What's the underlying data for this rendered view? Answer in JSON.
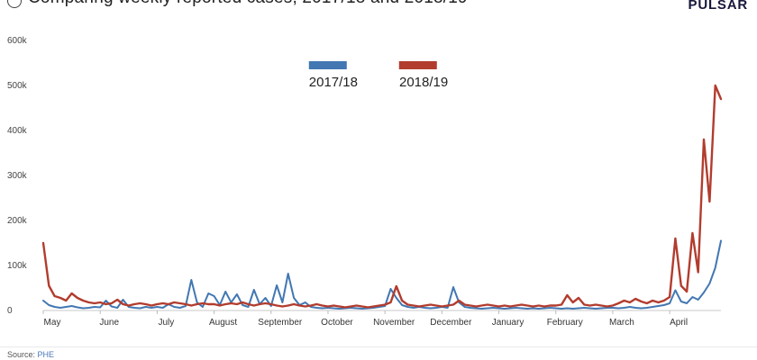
{
  "header": {
    "title": "Comparing weekly reported cases, 2017/18 and 2018/19",
    "logo": "PULSAR"
  },
  "legend": [
    {
      "label": "2017/18",
      "color": "#4277b2"
    },
    {
      "label": "2018/19",
      "color": "#b23c2e"
    }
  ],
  "footer": {
    "source_label": "Source:",
    "source_link": "PHE"
  },
  "chart_data": {
    "type": "line",
    "title": "",
    "xlabel": "",
    "ylabel": "",
    "grid": false,
    "legend_position": "top-center",
    "x_tick_labels": [
      "May",
      "June",
      "July",
      "August",
      "September",
      "October",
      "November",
      "December",
      "January",
      "February",
      "March",
      "April"
    ],
    "y_tick_labels": [
      "0",
      "100k",
      "200k",
      "300k",
      "400k",
      "500k",
      "600k"
    ],
    "ylim": [
      0,
      600000
    ],
    "values_unit": "thousands",
    "y_max_k": 600,
    "points_per_month": 10,
    "series": [
      {
        "name": "2017/18",
        "color": "#4277b2",
        "stroke_width": 2,
        "values": [
          22,
          12,
          8,
          6,
          8,
          10,
          7,
          5,
          6,
          8,
          7,
          22,
          9,
          6,
          24,
          8,
          6,
          5,
          8,
          6,
          8,
          6,
          14,
          8,
          6,
          10,
          68,
          18,
          8,
          38,
          32,
          12,
          42,
          18,
          36,
          12,
          8,
          46,
          14,
          28,
          10,
          56,
          18,
          82,
          28,
          12,
          18,
          8,
          6,
          5,
          6,
          5,
          4,
          5,
          6,
          5,
          4,
          5,
          6,
          8,
          10,
          48,
          28,
          12,
          8,
          6,
          8,
          6,
          5,
          6,
          8,
          6,
          52,
          18,
          8,
          6,
          5,
          4,
          5,
          6,
          5,
          4,
          5,
          6,
          5,
          4,
          5,
          4,
          5,
          6,
          5,
          4,
          5,
          4,
          5,
          6,
          5,
          4,
          5,
          6,
          6,
          5,
          6,
          8,
          6,
          5,
          6,
          8,
          10,
          12,
          16,
          45,
          20,
          16,
          30,
          24,
          40,
          60,
          95,
          155
        ]
      },
      {
        "name": "2018/19",
        "color": "#b23c2e",
        "stroke_width": 2.4,
        "values": [
          150,
          55,
          32,
          28,
          22,
          38,
          28,
          22,
          18,
          16,
          18,
          14,
          16,
          24,
          14,
          11,
          14,
          16,
          14,
          11,
          14,
          16,
          14,
          18,
          16,
          14,
          11,
          14,
          16,
          14,
          14,
          11,
          14,
          16,
          14,
          18,
          14,
          11,
          14,
          16,
          14,
          11,
          9,
          11,
          14,
          11,
          9,
          11,
          14,
          11,
          9,
          11,
          9,
          7,
          9,
          11,
          9,
          7,
          9,
          11,
          13,
          18,
          54,
          22,
          13,
          11,
          9,
          11,
          13,
          11,
          9,
          11,
          13,
          22,
          13,
          11,
          9,
          11,
          13,
          11,
          9,
          11,
          9,
          11,
          13,
          11,
          9,
          11,
          9,
          11,
          11,
          13,
          34,
          18,
          28,
          13,
          11,
          13,
          11,
          9,
          11,
          16,
          22,
          18,
          26,
          20,
          16,
          22,
          18,
          22,
          30,
          160,
          55,
          42,
          172,
          85,
          380,
          242,
          500,
          470
        ]
      }
    ]
  }
}
